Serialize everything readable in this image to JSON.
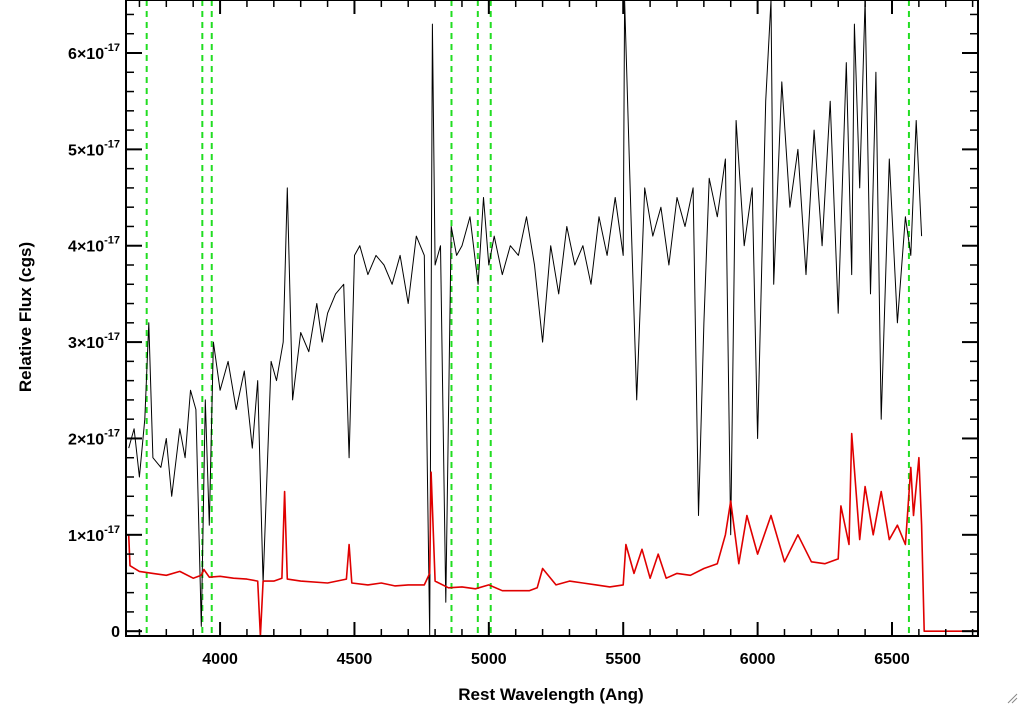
{
  "chart_data": {
    "type": "line",
    "title": "",
    "xlabel": "Rest Wavelength (Ang)",
    "ylabel": "Relative Flux (cgs)",
    "xlim": [
      3650,
      6820
    ],
    "ylim": [
      -5e-19,
      6.55e-17
    ],
    "grid": false,
    "legend": "none",
    "x_ticks": [
      {
        "value": 4000,
        "label": "4000"
      },
      {
        "value": 4500,
        "label": "4500"
      },
      {
        "value": 5000,
        "label": "5000"
      },
      {
        "value": 5500,
        "label": "5500"
      },
      {
        "value": 6000,
        "label": "6000"
      },
      {
        "value": 6500,
        "label": "6500"
      }
    ],
    "y_ticks": [
      {
        "value": 0,
        "mantissa": "0",
        "exponent": ""
      },
      {
        "value": 1e-17,
        "mantissa": "1×10",
        "exponent": "-17"
      },
      {
        "value": 2e-17,
        "mantissa": "2×10",
        "exponent": "-17"
      },
      {
        "value": 3e-17,
        "mantissa": "3×10",
        "exponent": "-17"
      },
      {
        "value": 4e-17,
        "mantissa": "4×10",
        "exponent": "-17"
      },
      {
        "value": 5e-17,
        "mantissa": "5×10",
        "exponent": "-17"
      },
      {
        "value": 6e-17,
        "mantissa": "6×10",
        "exponent": "-17"
      }
    ],
    "reference_lines": [
      3727,
      3934,
      3969,
      4861,
      4959,
      5007,
      6563
    ],
    "series": [
      {
        "role": "spectrum",
        "color": "#000000",
        "x": [
          3660,
          3680,
          3700,
          3720,
          3735,
          3750,
          3780,
          3800,
          3820,
          3850,
          3870,
          3890,
          3910,
          3930,
          3945,
          3960,
          3975,
          4000,
          4030,
          4060,
          4090,
          4120,
          4140,
          4160,
          4190,
          4210,
          4235,
          4250,
          4270,
          4300,
          4330,
          4360,
          4380,
          4400,
          4430,
          4460,
          4480,
          4500,
          4520,
          4550,
          4580,
          4610,
          4640,
          4670,
          4700,
          4730,
          4760,
          4780,
          4790,
          4800,
          4820,
          4840,
          4860,
          4880,
          4900,
          4930,
          4960,
          4980,
          5000,
          5020,
          5050,
          5080,
          5110,
          5140,
          5170,
          5200,
          5230,
          5260,
          5290,
          5320,
          5350,
          5380,
          5410,
          5440,
          5470,
          5500,
          5505,
          5530,
          5550,
          5580,
          5610,
          5640,
          5670,
          5700,
          5730,
          5760,
          5780,
          5800,
          5820,
          5850,
          5880,
          5900,
          5920,
          5950,
          5980,
          6000,
          6030,
          6050,
          6060,
          6090,
          6120,
          6150,
          6180,
          6210,
          6240,
          6270,
          6300,
          6330,
          6350,
          6360,
          6380,
          6400,
          6420,
          6440,
          6460,
          6490,
          6520,
          6550,
          6570,
          6590,
          6610
        ],
        "y": [
          1.9e-17,
          2.1e-17,
          1.6e-17,
          2.2e-17,
          3.2e-17,
          1.8e-17,
          1.7e-17,
          2e-17,
          1.4e-17,
          2.1e-17,
          1.8e-17,
          2.5e-17,
          2.3e-17,
          5e-19,
          2.4e-17,
          1.1e-17,
          3e-17,
          2.5e-17,
          2.8e-17,
          2.3e-17,
          2.7e-17,
          1.9e-17,
          2.6e-17,
          5e-18,
          2.8e-17,
          2.6e-17,
          3e-17,
          4.6e-17,
          2.4e-17,
          3.1e-17,
          2.9e-17,
          3.4e-17,
          3e-17,
          3.3e-17,
          3.5e-17,
          3.6e-17,
          1.8e-17,
          3.9e-17,
          4e-17,
          3.7e-17,
          3.9e-17,
          3.8e-17,
          3.6e-17,
          3.9e-17,
          3.4e-17,
          4.1e-17,
          3.9e-17,
          -5e-19,
          6.3e-17,
          3.8e-17,
          4e-17,
          3e-18,
          4.2e-17,
          3.9e-17,
          4e-17,
          4.3e-17,
          3.6e-17,
          4.5e-17,
          3.8e-17,
          4.1e-17,
          3.7e-17,
          4e-17,
          3.9e-17,
          4.3e-17,
          3.8e-17,
          3e-17,
          4e-17,
          3.5e-17,
          4.2e-17,
          3.8e-17,
          4e-17,
          3.6e-17,
          4.3e-17,
          3.9e-17,
          4.5e-17,
          3.9e-17,
          6.55e-17,
          4.2e-17,
          2.4e-17,
          4.6e-17,
          4.1e-17,
          4.4e-17,
          3.8e-17,
          4.5e-17,
          4.2e-17,
          4.6e-17,
          1.2e-17,
          3.2e-17,
          4.7e-17,
          4.3e-17,
          4.9e-17,
          1e-17,
          5.3e-17,
          4e-17,
          4.6e-17,
          2e-17,
          5.5e-17,
          6.55e-17,
          3.6e-17,
          5.7e-17,
          4.4e-17,
          5e-17,
          3.7e-17,
          5.2e-17,
          4e-17,
          5.5e-17,
          3.3e-17,
          5.9e-17,
          3.7e-17,
          6.3e-17,
          4.6e-17,
          6.55e-17,
          3.5e-17,
          5.8e-17,
          2.2e-17,
          4.9e-17,
          3.2e-17,
          4.3e-17,
          3.9e-17,
          5.3e-17,
          4.1e-17
        ]
      },
      {
        "role": "error",
        "color": "#e00000",
        "x": [
          3660,
          3665,
          3700,
          3750,
          3800,
          3850,
          3900,
          3930,
          3940,
          3960,
          4000,
          4050,
          4100,
          4140,
          4150,
          4160,
          4200,
          4230,
          4240,
          4250,
          4300,
          4400,
          4470,
          4480,
          4490,
          4550,
          4600,
          4650,
          4700,
          4760,
          4780,
          4785,
          4800,
          4850,
          4900,
          4950,
          5000,
          5050,
          5100,
          5150,
          5180,
          5200,
          5250,
          5300,
          5350,
          5400,
          5450,
          5500,
          5510,
          5540,
          5570,
          5600,
          5630,
          5660,
          5700,
          5750,
          5800,
          5850,
          5880,
          5900,
          5930,
          5960,
          6000,
          6050,
          6100,
          6150,
          6200,
          6250,
          6300,
          6310,
          6340,
          6350,
          6380,
          6400,
          6430,
          6460,
          6490,
          6520,
          6550,
          6570,
          6580,
          6600,
          6610,
          6620,
          6700,
          6820
        ],
        "y": [
          1e-17,
          6.8e-18,
          6.2e-18,
          6e-18,
          5.8e-18,
          6.2e-18,
          5.5e-18,
          5.8e-18,
          6.4e-18,
          5.6e-18,
          5.7e-18,
          5.5e-18,
          5.4e-18,
          5.2e-18,
          -5e-19,
          5.2e-18,
          5.2e-18,
          5.5e-18,
          1.45e-17,
          5.4e-18,
          5.2e-18,
          5e-18,
          5.4e-18,
          9e-18,
          5e-18,
          4.8e-18,
          5e-18,
          4.7e-18,
          4.8e-18,
          4.8e-18,
          6e-18,
          1.65e-17,
          5.2e-18,
          4.5e-18,
          4.6e-18,
          4.4e-18,
          4.8e-18,
          4.2e-18,
          4.2e-18,
          4.2e-18,
          4.5e-18,
          6.5e-18,
          4.8e-18,
          5.2e-18,
          5e-18,
          4.8e-18,
          4.6e-18,
          4.8e-18,
          9e-18,
          6e-18,
          8.5e-18,
          5.5e-18,
          8e-18,
          5.5e-18,
          6e-18,
          5.8e-18,
          6.5e-18,
          7e-18,
          1e-17,
          1.35e-17,
          7e-18,
          1.2e-17,
          8e-18,
          1.2e-17,
          7.2e-18,
          1e-17,
          7.2e-18,
          7e-18,
          7.5e-18,
          1.3e-17,
          9e-18,
          2.05e-17,
          9.5e-18,
          1.5e-17,
          1e-17,
          1.45e-17,
          9.5e-18,
          1.1e-17,
          9e-18,
          1.7e-17,
          1.2e-17,
          1.8e-17,
          1.1e-17,
          0.0,
          0.0,
          0.0
        ]
      }
    ]
  },
  "colors": {
    "spectrum": "#000000",
    "error": "#e00000",
    "reference_lines": "#22dd22",
    "axes": "#000000",
    "background": "#ffffff"
  }
}
